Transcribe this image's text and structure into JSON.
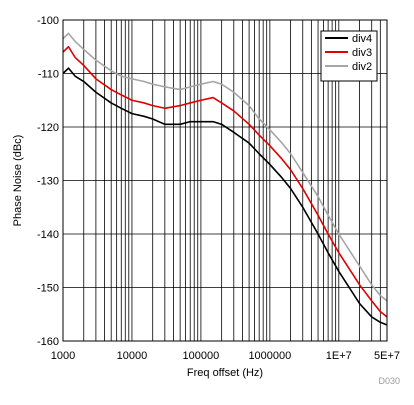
{
  "chart_data": {
    "type": "line",
    "title": "",
    "xlabel": "Freq offset (Hz)",
    "ylabel": "Phase Noise (dBc)",
    "x_scale": "log",
    "xlim": [
      1000,
      50000000
    ],
    "ylim": [
      -160,
      -100
    ],
    "grid": true,
    "legend_position": "top-right",
    "x_ticks": [
      {
        "value": 1000,
        "label": "1000"
      },
      {
        "value": 10000,
        "label": "10000"
      },
      {
        "value": 100000,
        "label": "100000"
      },
      {
        "value": 1000000,
        "label": "1000000"
      },
      {
        "value": 10000000,
        "label": "1E+7"
      },
      {
        "value": 50000000,
        "label": "5E+7"
      }
    ],
    "y_ticks": [
      {
        "value": -100,
        "label": "-100"
      },
      {
        "value": -110,
        "label": "-110"
      },
      {
        "value": -120,
        "label": "-120"
      },
      {
        "value": -130,
        "label": "-130"
      },
      {
        "value": -140,
        "label": "-140"
      },
      {
        "value": -150,
        "label": "-150"
      },
      {
        "value": -160,
        "label": "-160"
      }
    ],
    "series": [
      {
        "name": "div4",
        "color": "#000000",
        "points": [
          [
            1000,
            -110
          ],
          [
            1200,
            -109
          ],
          [
            1500,
            -110.5
          ],
          [
            2000,
            -111.5
          ],
          [
            3000,
            -113.5
          ],
          [
            5000,
            -115.5
          ],
          [
            7000,
            -116.5
          ],
          [
            10000,
            -117.5
          ],
          [
            15000,
            -118
          ],
          [
            20000,
            -118.5
          ],
          [
            30000,
            -119.5
          ],
          [
            50000,
            -119.5
          ],
          [
            70000,
            -119
          ],
          [
            100000,
            -119
          ],
          [
            150000,
            -119
          ],
          [
            200000,
            -119.5
          ],
          [
            300000,
            -121
          ],
          [
            500000,
            -123
          ],
          [
            700000,
            -125
          ],
          [
            1000000,
            -127
          ],
          [
            1500000,
            -129.5
          ],
          [
            2000000,
            -131.5
          ],
          [
            3000000,
            -135
          ],
          [
            5000000,
            -140
          ],
          [
            7000000,
            -143.5
          ],
          [
            10000000,
            -147
          ],
          [
            15000000,
            -150.5
          ],
          [
            20000000,
            -153
          ],
          [
            30000000,
            -155.5
          ],
          [
            40000000,
            -156.5
          ],
          [
            50000000,
            -157
          ]
        ]
      },
      {
        "name": "div3",
        "color": "#e00000",
        "points": [
          [
            1000,
            -106
          ],
          [
            1200,
            -105
          ],
          [
            1500,
            -107
          ],
          [
            2000,
            -108.5
          ],
          [
            3000,
            -111
          ],
          [
            5000,
            -113
          ],
          [
            7000,
            -114
          ],
          [
            10000,
            -115
          ],
          [
            15000,
            -115.5
          ],
          [
            20000,
            -116
          ],
          [
            30000,
            -116.5
          ],
          [
            50000,
            -116
          ],
          [
            70000,
            -115.5
          ],
          [
            100000,
            -115
          ],
          [
            150000,
            -114.5
          ],
          [
            200000,
            -115.5
          ],
          [
            300000,
            -117
          ],
          [
            500000,
            -119.5
          ],
          [
            700000,
            -121.5
          ],
          [
            1000000,
            -123.5
          ],
          [
            1500000,
            -126
          ],
          [
            2000000,
            -128
          ],
          [
            3000000,
            -131.5
          ],
          [
            5000000,
            -136.5
          ],
          [
            7000000,
            -140
          ],
          [
            10000000,
            -143.5
          ],
          [
            15000000,
            -147
          ],
          [
            20000000,
            -149.5
          ],
          [
            30000000,
            -152.5
          ],
          [
            40000000,
            -154.5
          ],
          [
            50000000,
            -155.5
          ]
        ]
      },
      {
        "name": "div2",
        "color": "#a6a6a6",
        "points": [
          [
            1000,
            -103.5
          ],
          [
            1200,
            -102.5
          ],
          [
            1500,
            -104
          ],
          [
            2000,
            -105.5
          ],
          [
            3000,
            -107.5
          ],
          [
            5000,
            -109.5
          ],
          [
            7000,
            -110.5
          ],
          [
            10000,
            -111
          ],
          [
            15000,
            -111.5
          ],
          [
            20000,
            -112
          ],
          [
            30000,
            -112.5
          ],
          [
            50000,
            -113
          ],
          [
            70000,
            -112.5
          ],
          [
            100000,
            -112
          ],
          [
            150000,
            -111.5
          ],
          [
            200000,
            -112
          ],
          [
            300000,
            -113.5
          ],
          [
            500000,
            -116
          ],
          [
            700000,
            -118.5
          ],
          [
            1000000,
            -120.5
          ],
          [
            1500000,
            -123
          ],
          [
            2000000,
            -125
          ],
          [
            3000000,
            -128.5
          ],
          [
            5000000,
            -133
          ],
          [
            7000000,
            -136.5
          ],
          [
            10000000,
            -140
          ],
          [
            15000000,
            -143.5
          ],
          [
            20000000,
            -146
          ],
          [
            30000000,
            -149.5
          ],
          [
            40000000,
            -151.5
          ],
          [
            50000000,
            -152.5
          ]
        ]
      }
    ]
  },
  "footer_code": "D030"
}
